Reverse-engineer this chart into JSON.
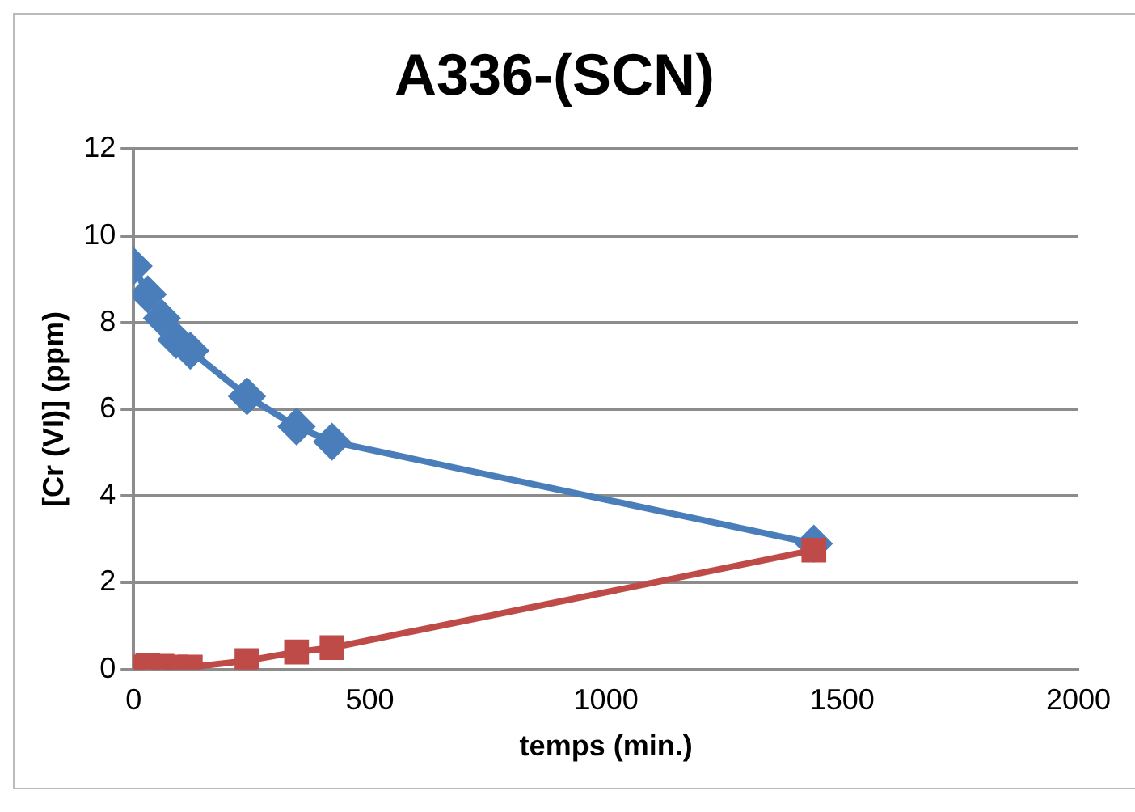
{
  "chart_data": {
    "type": "line",
    "title": "A336-(SCN)",
    "xlabel": "temps (min.)",
    "ylabel": "[Cr (VI)] (ppm)",
    "x": [
      0,
      30,
      60,
      90,
      120,
      240,
      345,
      420,
      1440
    ],
    "series": [
      {
        "color": "#4a7ebb",
        "marker": "diamond",
        "values": [
          9.3,
          8.65,
          8.1,
          7.6,
          7.35,
          6.3,
          5.6,
          5.25,
          2.9
        ]
      },
      {
        "color": "#be4b48",
        "marker": "square",
        "values": [
          0.05,
          0.08,
          0.07,
          0.05,
          0.05,
          0.2,
          0.4,
          0.5,
          2.75
        ]
      }
    ],
    "xlim": [
      0,
      2000
    ],
    "xticks": [
      0,
      500,
      1000,
      1500,
      2000
    ],
    "ylim": [
      0,
      12
    ],
    "yticks": [
      0,
      2,
      4,
      6,
      8,
      10,
      12
    ],
    "grid": "y",
    "legend": false
  }
}
